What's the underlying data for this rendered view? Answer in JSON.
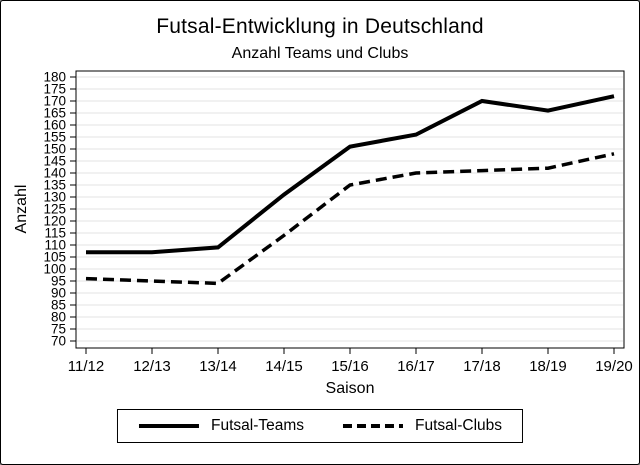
{
  "chart_data": {
    "type": "line",
    "title": "Futsal-Entwicklung in Deutschland",
    "subtitle": "Anzahl Teams und Clubs",
    "xlabel": "Saison",
    "ylabel": "Anzahl",
    "categories": [
      "11/12",
      "12/13",
      "13/14",
      "14/15",
      "15/16",
      "16/17",
      "17/18",
      "18/19",
      "19/20"
    ],
    "series": [
      {
        "name": "Futsal-Teams",
        "line_style": "solid",
        "values": [
          107,
          107,
          109,
          131,
          151,
          156,
          170,
          166,
          172
        ]
      },
      {
        "name": "Futsal-Clubs",
        "line_style": "dashed",
        "values": [
          96,
          95,
          94,
          114,
          135,
          140,
          141,
          142,
          148
        ]
      }
    ],
    "ylim": [
      70,
      180
    ],
    "ytick_step": 5,
    "grid": true,
    "legend_position": "bottom",
    "colors": {
      "line": "#000000",
      "grid": "#e3e3e3",
      "text": "#000000",
      "background": "#ffffff",
      "frame": "#000000"
    }
  }
}
